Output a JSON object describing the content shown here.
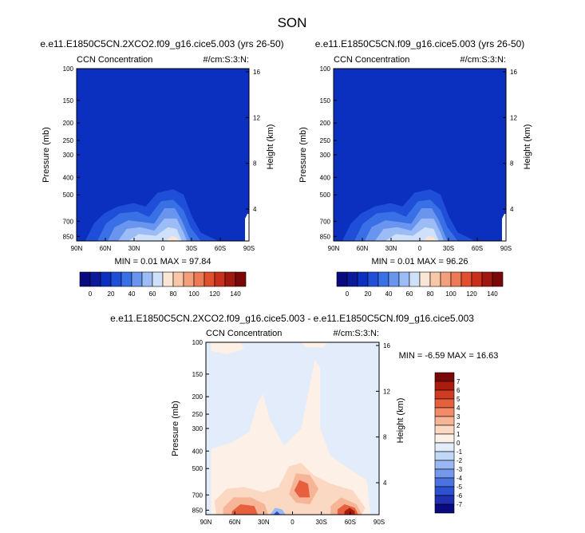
{
  "page": {
    "title": "SON"
  },
  "colors": {
    "plot_bg": "#0b2fbf",
    "frame": "#000000",
    "ccn_scale": [
      "#0a0a80",
      "#0a1a9a",
      "#0b2fbf",
      "#1f4fd8",
      "#3a70e6",
      "#6a95ef",
      "#9cbcf6",
      "#cfe0fb",
      "#fbe6d6",
      "#f7c7a8",
      "#f3a07a",
      "#ec7a54",
      "#e0502f",
      "#c9301c",
      "#a0180f",
      "#7a0808"
    ],
    "diff_scale": [
      "#0a0a80",
      "#1e2fb0",
      "#2b50d0",
      "#4a72e0",
      "#7398ec",
      "#9ab8f3",
      "#c1d7f8",
      "#e2ecfb",
      "#fdf0e6",
      "#fad8c2",
      "#f6b596",
      "#f18b68",
      "#e6603e",
      "#cf3a20",
      "#ab1c0f",
      "#7a0808"
    ]
  },
  "chart_data": [
    {
      "type": "contour",
      "title": "e.e11.E1850C5CN.2XCO2.f09_g16.cice5.003 (yrs 26-50)",
      "left_label": "CCN Concentration",
      "right_label": "#/cm:S:3:N:",
      "ylabel": "Pressure (mb)",
      "y2label": "Height (km)",
      "x_ticks": [
        "90N",
        "60N",
        "30N",
        "0",
        "30S",
        "60S",
        "90S"
      ],
      "y_ticks": [
        "100",
        "150",
        "200",
        "250",
        "300",
        "400",
        "500",
        "700",
        "850"
      ],
      "y2_ticks": [
        "16",
        "12",
        "8",
        "4"
      ],
      "stats": "MIN =  0.01  MAX = 97.84",
      "colorbar_ticks": [
        "0",
        "20",
        "40",
        "60",
        "80",
        "100",
        "120",
        "140"
      ]
    },
    {
      "type": "contour",
      "title": "e.e11.E1850C5CN.f09_g16.cice5.003 (yrs 26-50)",
      "left_label": "CCN Concentration",
      "right_label": "#/cm:S:3:N:",
      "ylabel": "Pressure (mb)",
      "y2label": "Height (km)",
      "x_ticks": [
        "90N",
        "60N",
        "30N",
        "0",
        "30S",
        "60S",
        "90S"
      ],
      "y_ticks": [
        "100",
        "150",
        "200",
        "250",
        "300",
        "400",
        "500",
        "700",
        "850"
      ],
      "y2_ticks": [
        "16",
        "12",
        "8",
        "4"
      ],
      "stats": "MIN =  0.01  MAX = 96.26",
      "colorbar_ticks": [
        "0",
        "20",
        "40",
        "60",
        "80",
        "100",
        "120",
        "140"
      ]
    },
    {
      "type": "contour",
      "title": "e.e11.E1850C5CN.2XCO2.f09_g16.cice5.003 - e.e11.E1850C5CN.f09_g16.cice5.003",
      "left_label": "CCN Concentration",
      "right_label": "#/cm:S:3:N:",
      "ylabel": "Pressure (mb)",
      "y2label": "Height (km)",
      "x_ticks": [
        "90N",
        "60N",
        "30N",
        "0",
        "30S",
        "60S",
        "90S"
      ],
      "y_ticks": [
        "100",
        "150",
        "200",
        "250",
        "300",
        "400",
        "500",
        "700",
        "850"
      ],
      "y2_ticks": [
        "16",
        "12",
        "8",
        "4"
      ],
      "stats": "MIN =  -6.59  MAX = 16.63",
      "colorbar_ticks": [
        "7",
        "6",
        "5",
        "4",
        "3",
        "2",
        "1",
        "0",
        "-1",
        "-2",
        "-3",
        "-4",
        "-5",
        "-6",
        "-7"
      ]
    }
  ]
}
